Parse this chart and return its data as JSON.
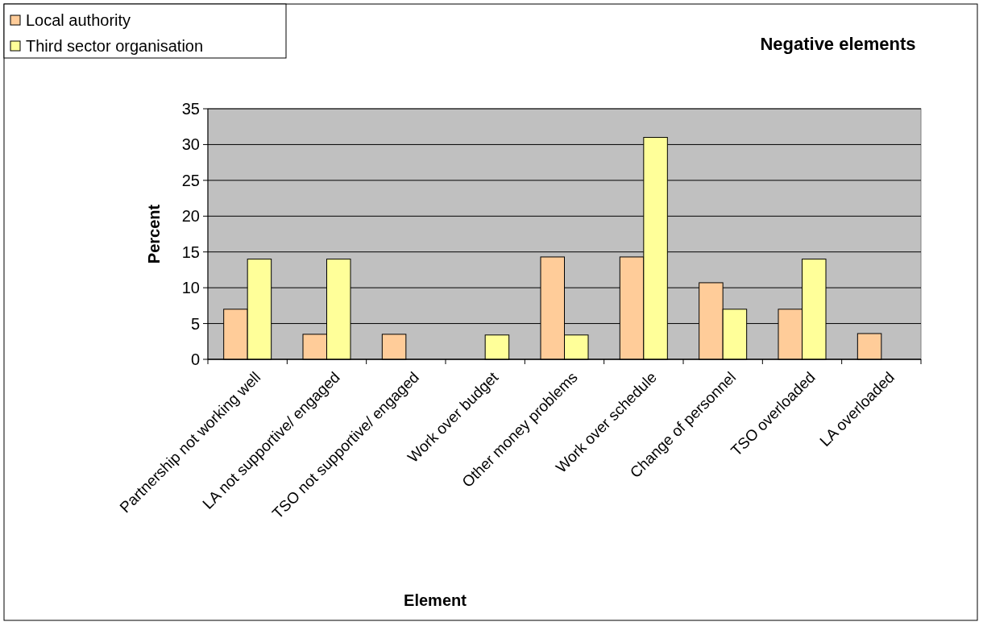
{
  "chart_data": {
    "type": "bar",
    "title": "Negative elements",
    "xlabel": "Element",
    "ylabel": "Percent",
    "categories": [
      "Partnership not working well",
      "LA not supportive/ engaged",
      "TSO not supportive/ engaged",
      "Work over budget",
      "Other money problems",
      "Work over schedule",
      "Change of personnel",
      "TSO overloaded",
      "LA overloaded"
    ],
    "series": [
      {
        "name": "Local authority",
        "color": "#ffcc99",
        "values": [
          7,
          3.5,
          3.5,
          0,
          14.3,
          14.3,
          10.7,
          7,
          3.6
        ]
      },
      {
        "name": "Third sector organisation",
        "color": "#ffff99",
        "values": [
          14,
          14,
          0,
          3.4,
          3.4,
          31,
          7,
          14,
          0
        ]
      }
    ],
    "ylim": [
      0,
      35
    ],
    "yticks": [
      0,
      5,
      10,
      15,
      20,
      25,
      30,
      35
    ],
    "grid": "y",
    "legend": "top left"
  }
}
